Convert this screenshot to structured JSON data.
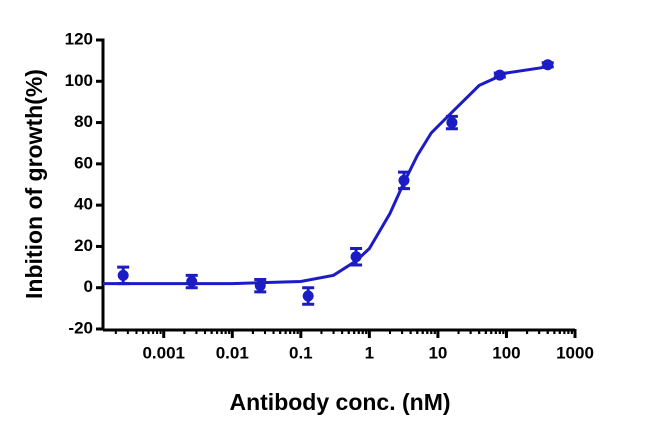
{
  "chart_data": {
    "type": "scatter",
    "x_label": "Antibody conc. (nM)",
    "y_label": "Inbition of growth(%)",
    "x_scale": "log",
    "xlim": [
      0.00013,
      1000
    ],
    "xticks": [
      0.001,
      0.01,
      0.1,
      1,
      10,
      100,
      1000
    ],
    "ylim": [
      -20,
      120
    ],
    "yticks": [
      -20,
      0,
      20,
      40,
      60,
      80,
      100,
      120
    ],
    "color": "#1c1cc4",
    "x": [
      0.000256,
      0.00256,
      0.0256,
      0.128,
      0.64,
      3.2,
      16,
      80,
      400
    ],
    "values": [
      6,
      3,
      1,
      -4,
      15,
      52,
      80,
      103,
      108
    ],
    "errors": [
      4,
      3,
      3,
      4,
      4,
      4,
      3,
      1,
      1
    ],
    "curve": {
      "x": [
        0.00013,
        0.001,
        0.01,
        0.1,
        0.3,
        0.64,
        1,
        2,
        3.2,
        5,
        8,
        16,
        40,
        100,
        400
      ],
      "values": [
        2,
        2,
        2,
        3,
        6,
        13,
        19,
        36,
        51,
        64,
        75,
        85,
        98,
        104,
        107
      ]
    }
  }
}
